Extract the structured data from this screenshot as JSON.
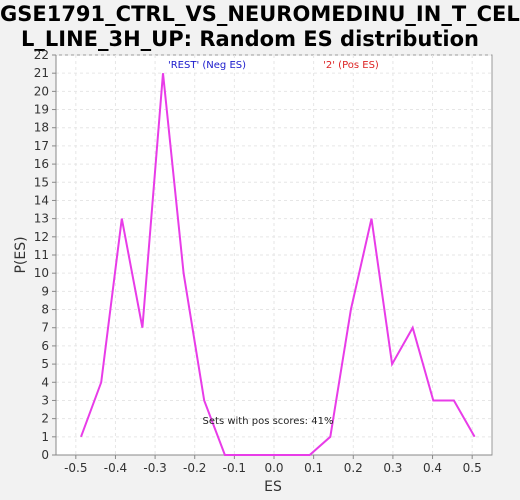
{
  "chart_data": {
    "type": "line",
    "title": "GSE1791_CTRL_VS_NEUROMEDINU_IN_T_CELL_LINE_3H_UP: Random ES distribution",
    "title_lines": [
      "GSE1791_CTRL_VS_NEUROMEDINU_IN_T_CEL",
      "L_LINE_3H_UP: Random ES distribution"
    ],
    "xlabel": "ES",
    "ylabel": "P(ES)",
    "xlim": [
      -0.55,
      0.55
    ],
    "ylim": [
      0,
      22
    ],
    "xticks": [
      "-0.5",
      "-0.4",
      "-0.3",
      "-0.2",
      "-0.1",
      "0.0",
      "0.1",
      "0.2",
      "0.3",
      "0.4",
      "0.5"
    ],
    "xtick_values": [
      -0.5,
      -0.4,
      -0.3,
      -0.2,
      -0.1,
      0.0,
      0.1,
      0.2,
      0.3,
      0.4,
      0.5
    ],
    "yticks": [
      "0",
      "1",
      "2",
      "3",
      "4",
      "5",
      "6",
      "7",
      "8",
      "9",
      "10",
      "11",
      "12",
      "13",
      "14",
      "15",
      "16",
      "17",
      "18",
      "19",
      "20",
      "21",
      "22"
    ],
    "grid": true,
    "series": [
      {
        "color": "#e83ce8",
        "x": [
          -0.487,
          -0.436,
          -0.384,
          -0.332,
          -0.28,
          -0.228,
          -0.176,
          -0.124,
          -0.072,
          -0.02,
          0.032,
          0.09,
          0.142,
          0.194,
          0.246,
          0.298,
          0.35,
          0.402,
          0.454,
          0.506
        ],
        "y": [
          1,
          4,
          13,
          7,
          21,
          10,
          3,
          0,
          0,
          0,
          0,
          0,
          1,
          8,
          13,
          5,
          7,
          3,
          3,
          1
        ]
      }
    ],
    "annotations": {
      "neg_label": "'REST' (Neg ES)",
      "pos_label": "'2' (Pos ES)",
      "neg_color": "#1a1acc",
      "pos_color": "#dd2222",
      "footer": "Sets with pos scores: 41%"
    }
  }
}
